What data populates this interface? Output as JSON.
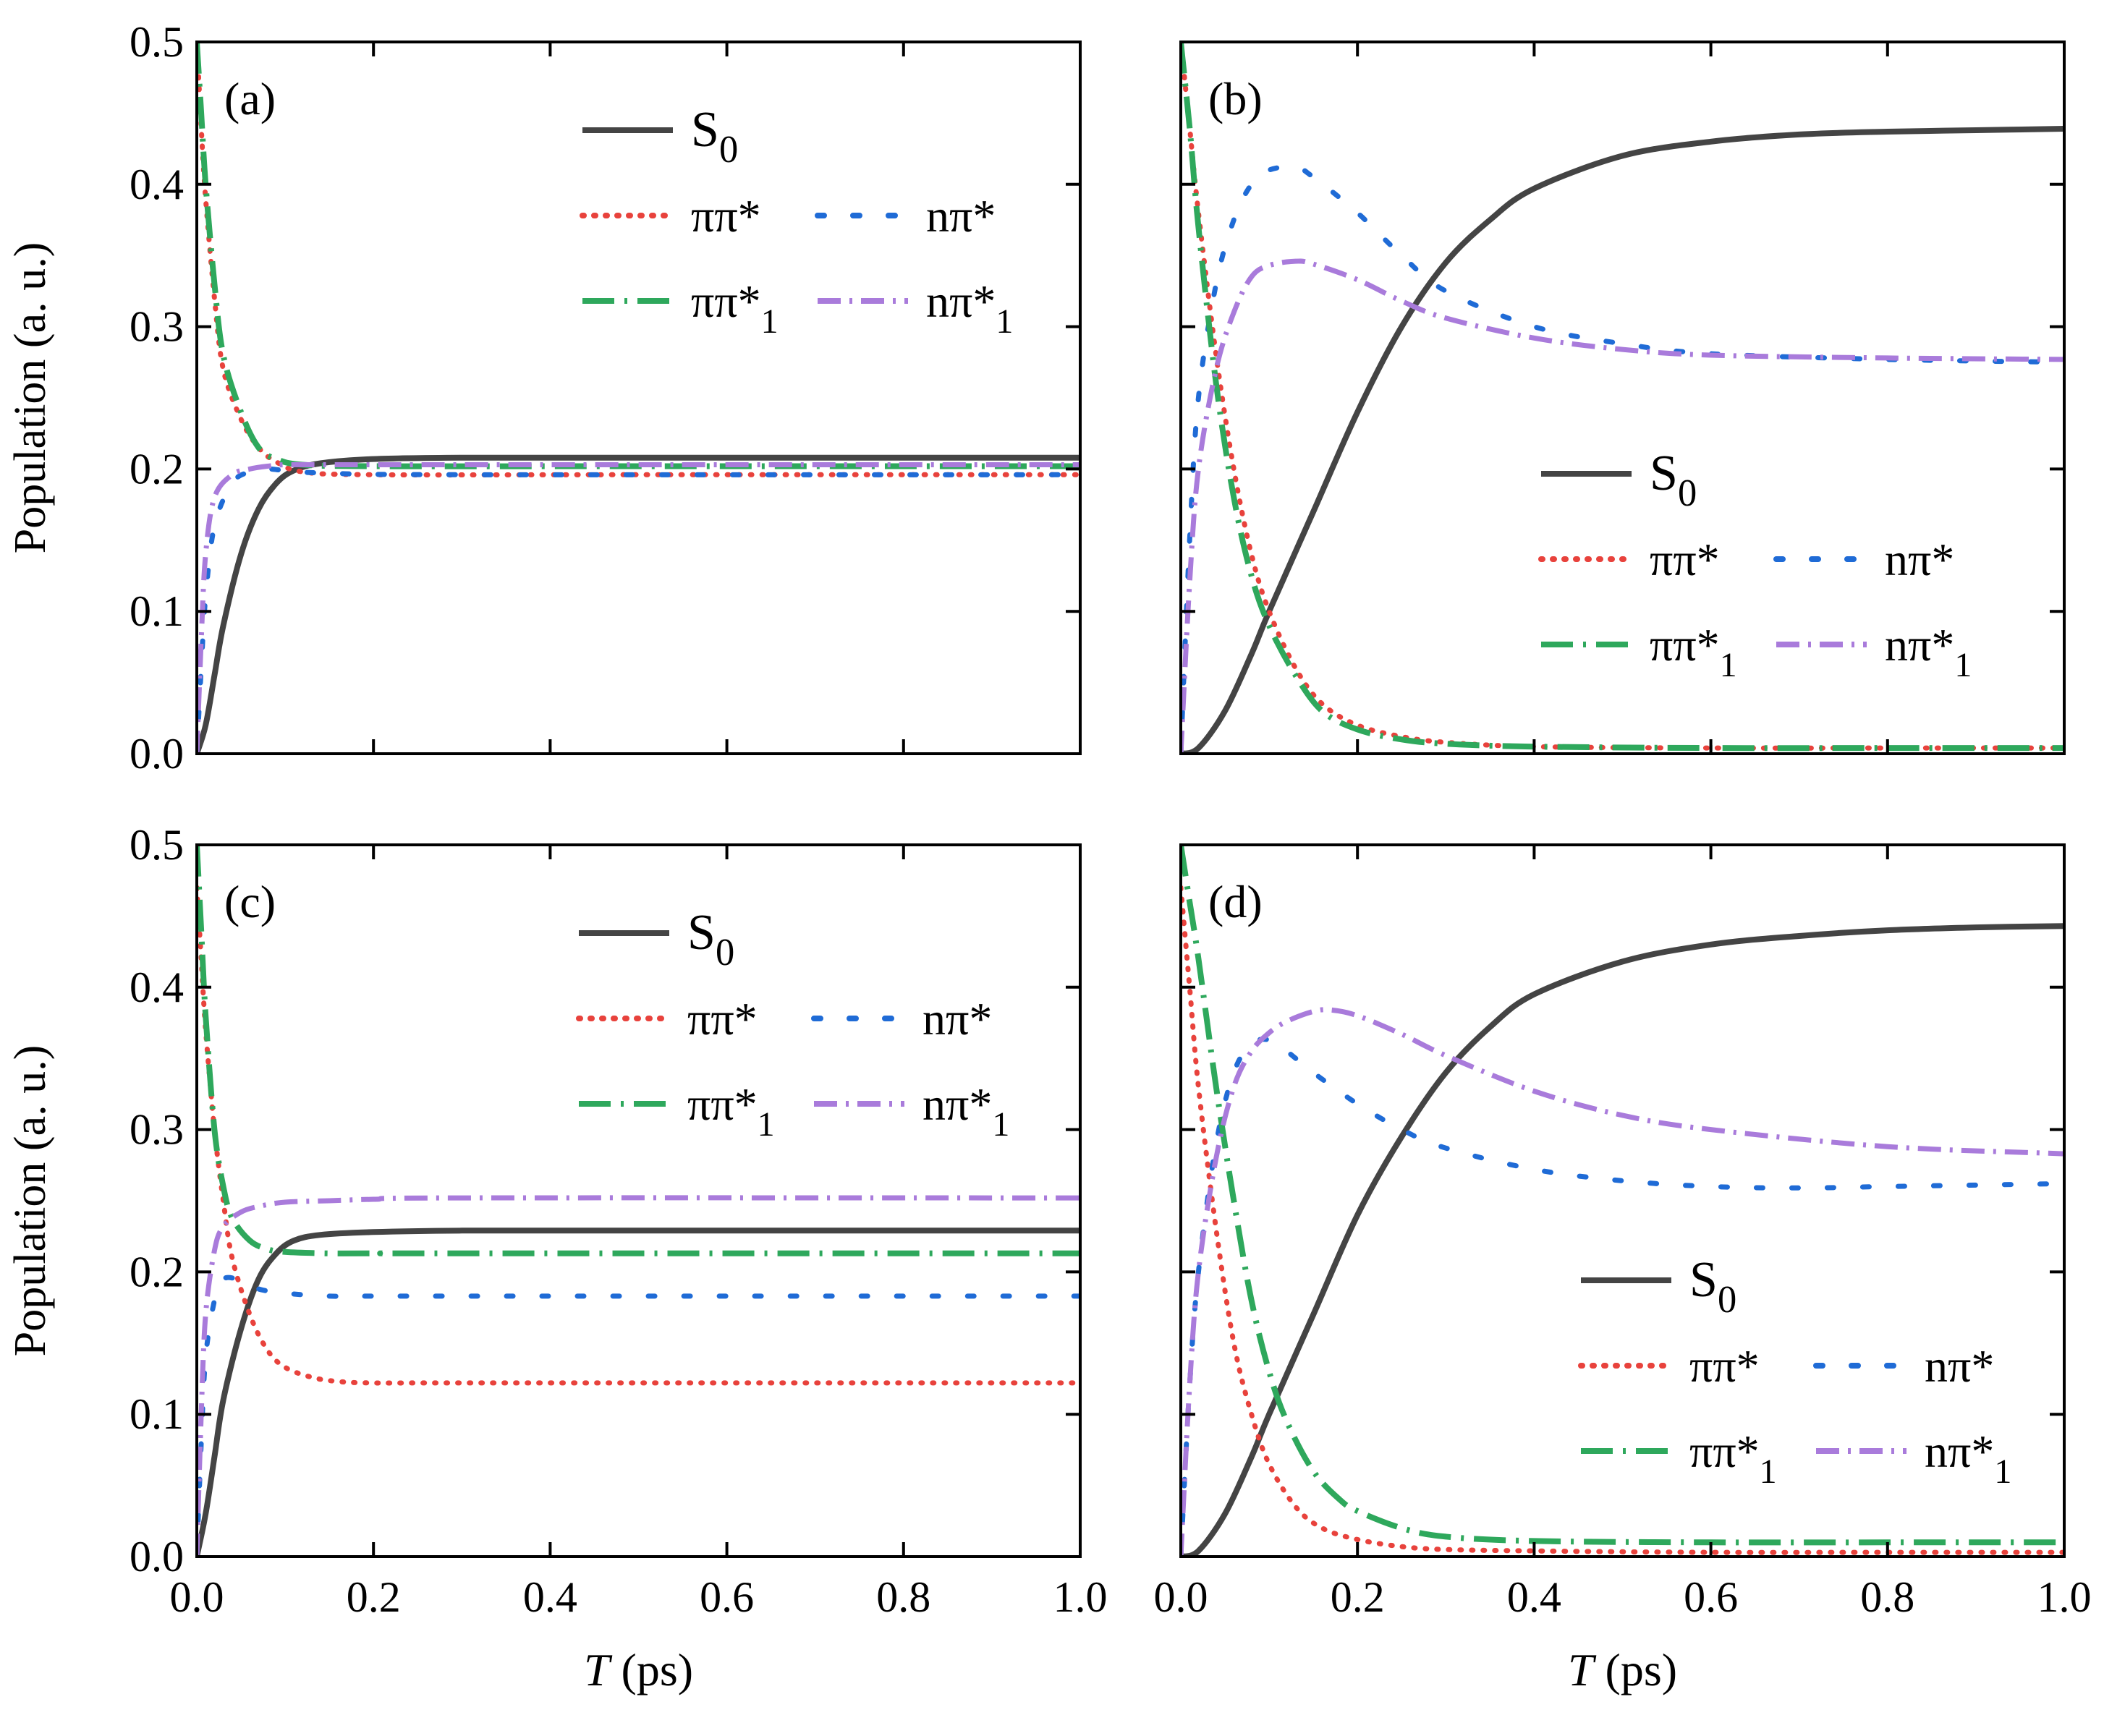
{
  "figure": {
    "y_axis_label": "Population (a. u.)",
    "x_axis_label_italic": "T",
    "x_axis_label_unit": " (ps)",
    "x_ticks": [
      "0.0",
      "0.2",
      "0.4",
      "0.6",
      "0.8",
      "1.0"
    ],
    "y_ticks": [
      "0.0",
      "0.1",
      "0.2",
      "0.3",
      "0.4",
      "0.5"
    ]
  },
  "series_styles": {
    "S0": {
      "color": "#444444",
      "dash": "solid"
    },
    "pp": {
      "color": "#E8423C",
      "dash": "dot"
    },
    "np": {
      "color": "#1F6BD6",
      "dash": "dash-dot-sparse"
    },
    "pp1": {
      "color": "#2EA85C",
      "dash": "long-dash-dot"
    },
    "np1": {
      "color": "#A97BDB",
      "dash": "dash-dot"
    }
  },
  "legend_labels": {
    "S0": {
      "base": "S",
      "sub": "0"
    },
    "pp": {
      "base": "ππ*",
      "sub": ""
    },
    "np": {
      "base": "nπ*",
      "sub": ""
    },
    "pp1": {
      "base": "ππ*",
      "sub": "1"
    },
    "np1": {
      "base": "nπ*",
      "sub": "1"
    }
  },
  "chart_data": [
    {
      "type": "line",
      "panel": "(a)",
      "xlim": [
        0,
        1
      ],
      "ylim": [
        0,
        0.5
      ],
      "xlabel": "T (ps)",
      "ylabel": "Population (a. u.)",
      "legend": "upper-center",
      "series": [
        {
          "name": "S0",
          "x": [
            0,
            0.01,
            0.02,
            0.03,
            0.05,
            0.07,
            0.09,
            0.11,
            0.14,
            0.2,
            0.3,
            0.5,
            0.8,
            1.0
          ],
          "y": [
            0,
            0.02,
            0.055,
            0.09,
            0.14,
            0.172,
            0.19,
            0.199,
            0.204,
            0.207,
            0.208,
            0.208,
            0.208,
            0.208
          ]
        },
        {
          "name": "ππ*",
          "x": [
            0,
            0.005,
            0.01,
            0.02,
            0.03,
            0.05,
            0.07,
            0.09,
            0.12,
            0.2,
            0.5,
            1.0
          ],
          "y": [
            0.5,
            0.44,
            0.39,
            0.32,
            0.27,
            0.235,
            0.215,
            0.205,
            0.198,
            0.196,
            0.196,
            0.196
          ]
        },
        {
          "name": "nπ*",
          "x": [
            0,
            0.005,
            0.01,
            0.02,
            0.04,
            0.06,
            0.08,
            0.1,
            0.15,
            0.3,
            1.0
          ],
          "y": [
            0,
            0.06,
            0.11,
            0.16,
            0.19,
            0.198,
            0.2,
            0.199,
            0.197,
            0.196,
            0.196
          ]
        },
        {
          "name": "ππ*1",
          "x": [
            0,
            0.005,
            0.01,
            0.02,
            0.03,
            0.05,
            0.07,
            0.09,
            0.12,
            0.2,
            0.5,
            1.0
          ],
          "y": [
            0.5,
            0.45,
            0.4,
            0.33,
            0.28,
            0.24,
            0.215,
            0.207,
            0.203,
            0.202,
            0.202,
            0.202
          ]
        },
        {
          "name": "nπ*1",
          "x": [
            0,
            0.005,
            0.01,
            0.02,
            0.04,
            0.06,
            0.08,
            0.1,
            0.15,
            0.3,
            1.0
          ],
          "y": [
            0,
            0.08,
            0.14,
            0.18,
            0.196,
            0.2,
            0.202,
            0.203,
            0.203,
            0.203,
            0.203
          ]
        }
      ]
    },
    {
      "type": "line",
      "panel": "(b)",
      "xlim": [
        0,
        1
      ],
      "ylim": [
        0,
        0.5
      ],
      "xlabel": "T (ps)",
      "legend": "center-right",
      "series": [
        {
          "name": "S0",
          "x": [
            0,
            0.02,
            0.05,
            0.08,
            0.1,
            0.15,
            0.2,
            0.25,
            0.3,
            0.35,
            0.4,
            0.5,
            0.6,
            0.7,
            0.8,
            0.9,
            1.0
          ],
          "y": [
            0,
            0.004,
            0.03,
            0.07,
            0.1,
            0.17,
            0.24,
            0.3,
            0.345,
            0.375,
            0.397,
            0.42,
            0.43,
            0.435,
            0.437,
            0.438,
            0.439
          ]
        },
        {
          "name": "ππ*",
          "x": [
            0,
            0.01,
            0.02,
            0.04,
            0.06,
            0.08,
            0.1,
            0.13,
            0.16,
            0.2,
            0.25,
            0.3,
            0.4,
            0.6,
            0.8,
            1.0
          ],
          "y": [
            0.5,
            0.44,
            0.38,
            0.28,
            0.2,
            0.14,
            0.1,
            0.06,
            0.035,
            0.02,
            0.012,
            0.008,
            0.005,
            0.004,
            0.004,
            0.004
          ]
        },
        {
          "name": "nπ*",
          "x": [
            0,
            0.01,
            0.02,
            0.04,
            0.06,
            0.08,
            0.1,
            0.13,
            0.15,
            0.2,
            0.25,
            0.3,
            0.4,
            0.5,
            0.6,
            0.8,
            1.0
          ],
          "y": [
            0,
            0.15,
            0.25,
            0.33,
            0.375,
            0.4,
            0.41,
            0.412,
            0.405,
            0.38,
            0.35,
            0.325,
            0.3,
            0.288,
            0.281,
            0.277,
            0.275
          ]
        },
        {
          "name": "ππ*1",
          "x": [
            0,
            0.01,
            0.02,
            0.04,
            0.06,
            0.08,
            0.1,
            0.13,
            0.16,
            0.2,
            0.25,
            0.3,
            0.4,
            0.6,
            0.8,
            1.0
          ],
          "y": [
            0.5,
            0.44,
            0.37,
            0.26,
            0.18,
            0.125,
            0.09,
            0.055,
            0.03,
            0.017,
            0.01,
            0.007,
            0.005,
            0.004,
            0.004,
            0.004
          ]
        },
        {
          "name": "nπ*1",
          "x": [
            0,
            0.01,
            0.02,
            0.04,
            0.06,
            0.08,
            0.1,
            0.13,
            0.15,
            0.2,
            0.25,
            0.3,
            0.4,
            0.5,
            0.6,
            0.8,
            1.0
          ],
          "y": [
            0,
            0.12,
            0.2,
            0.27,
            0.31,
            0.335,
            0.343,
            0.346,
            0.344,
            0.333,
            0.318,
            0.306,
            0.292,
            0.284,
            0.28,
            0.278,
            0.277
          ]
        }
      ]
    },
    {
      "type": "line",
      "panel": "(c)",
      "xlim": [
        0,
        1
      ],
      "ylim": [
        0,
        0.5
      ],
      "xlabel": "T (ps)",
      "ylabel": "Population (a. u.)",
      "legend": "upper-center",
      "series": [
        {
          "name": "S0",
          "x": [
            0,
            0.01,
            0.02,
            0.03,
            0.05,
            0.07,
            0.09,
            0.11,
            0.14,
            0.2,
            0.3,
            0.5,
            1.0
          ],
          "y": [
            0,
            0.03,
            0.07,
            0.11,
            0.16,
            0.195,
            0.213,
            0.222,
            0.226,
            0.228,
            0.229,
            0.229,
            0.229
          ]
        },
        {
          "name": "ππ*",
          "x": [
            0,
            0.005,
            0.01,
            0.02,
            0.03,
            0.04,
            0.06,
            0.08,
            0.1,
            0.13,
            0.16,
            0.2,
            0.3,
            1.0
          ],
          "y": [
            0.47,
            0.42,
            0.37,
            0.3,
            0.25,
            0.21,
            0.17,
            0.145,
            0.133,
            0.126,
            0.123,
            0.122,
            0.122,
            0.122
          ]
        },
        {
          "name": "nπ*",
          "x": [
            0,
            0.005,
            0.01,
            0.02,
            0.03,
            0.05,
            0.07,
            0.1,
            0.15,
            0.2,
            0.3,
            1.0
          ],
          "y": [
            0,
            0.08,
            0.14,
            0.18,
            0.195,
            0.194,
            0.188,
            0.185,
            0.183,
            0.183,
            0.183,
            0.183
          ]
        },
        {
          "name": "ππ*1",
          "x": [
            0,
            0.005,
            0.01,
            0.02,
            0.03,
            0.04,
            0.06,
            0.08,
            0.1,
            0.15,
            0.2,
            0.3,
            1.0
          ],
          "y": [
            0.5,
            0.44,
            0.38,
            0.3,
            0.26,
            0.238,
            0.222,
            0.216,
            0.214,
            0.213,
            0.213,
            0.213,
            0.213
          ]
        },
        {
          "name": "nπ*1",
          "x": [
            0,
            0.005,
            0.01,
            0.02,
            0.03,
            0.05,
            0.07,
            0.1,
            0.15,
            0.2,
            0.3,
            1.0
          ],
          "y": [
            0,
            0.1,
            0.17,
            0.215,
            0.232,
            0.242,
            0.246,
            0.249,
            0.25,
            0.251,
            0.252,
            0.252
          ]
        }
      ]
    },
    {
      "type": "line",
      "panel": "(d)",
      "xlim": [
        0,
        1
      ],
      "ylim": [
        0,
        0.5
      ],
      "xlabel": "T (ps)",
      "legend": "lower-right",
      "series": [
        {
          "name": "S0",
          "x": [
            0,
            0.02,
            0.05,
            0.08,
            0.1,
            0.15,
            0.2,
            0.25,
            0.3,
            0.35,
            0.4,
            0.5,
            0.6,
            0.7,
            0.8,
            0.9,
            1.0
          ],
          "y": [
            0,
            0.004,
            0.03,
            0.07,
            0.1,
            0.17,
            0.24,
            0.295,
            0.34,
            0.372,
            0.395,
            0.418,
            0.43,
            0.436,
            0.44,
            0.442,
            0.443
          ]
        },
        {
          "name": "ππ*",
          "x": [
            0,
            0.01,
            0.02,
            0.04,
            0.06,
            0.08,
            0.1,
            0.13,
            0.16,
            0.2,
            0.25,
            0.3,
            0.4,
            0.6,
            0.8,
            1.0
          ],
          "y": [
            0.47,
            0.4,
            0.33,
            0.23,
            0.15,
            0.1,
            0.065,
            0.035,
            0.02,
            0.012,
            0.007,
            0.005,
            0.004,
            0.003,
            0.003,
            0.003
          ]
        },
        {
          "name": "nπ*",
          "x": [
            0,
            0.01,
            0.02,
            0.04,
            0.06,
            0.08,
            0.1,
            0.12,
            0.15,
            0.2,
            0.25,
            0.3,
            0.4,
            0.5,
            0.6,
            0.7,
            0.8,
            0.9,
            1.0
          ],
          "y": [
            0,
            0.12,
            0.2,
            0.29,
            0.34,
            0.36,
            0.363,
            0.355,
            0.34,
            0.318,
            0.3,
            0.287,
            0.272,
            0.264,
            0.26,
            0.259,
            0.26,
            0.261,
            0.262
          ]
        },
        {
          "name": "ππ*1",
          "x": [
            0,
            0.01,
            0.02,
            0.04,
            0.06,
            0.08,
            0.1,
            0.12,
            0.15,
            0.18,
            0.2,
            0.25,
            0.3,
            0.4,
            0.6,
            0.8,
            1.0
          ],
          "y": [
            0.5,
            0.46,
            0.42,
            0.33,
            0.25,
            0.18,
            0.13,
            0.095,
            0.06,
            0.04,
            0.032,
            0.02,
            0.014,
            0.011,
            0.01,
            0.01,
            0.01
          ]
        },
        {
          "name": "nπ*1",
          "x": [
            0,
            0.01,
            0.02,
            0.04,
            0.06,
            0.08,
            0.1,
            0.12,
            0.15,
            0.17,
            0.2,
            0.25,
            0.3,
            0.4,
            0.5,
            0.6,
            0.8,
            1.0
          ],
          "y": [
            0,
            0.12,
            0.2,
            0.28,
            0.33,
            0.355,
            0.368,
            0.376,
            0.383,
            0.384,
            0.38,
            0.367,
            0.352,
            0.327,
            0.31,
            0.3,
            0.288,
            0.283
          ]
        }
      ]
    }
  ]
}
